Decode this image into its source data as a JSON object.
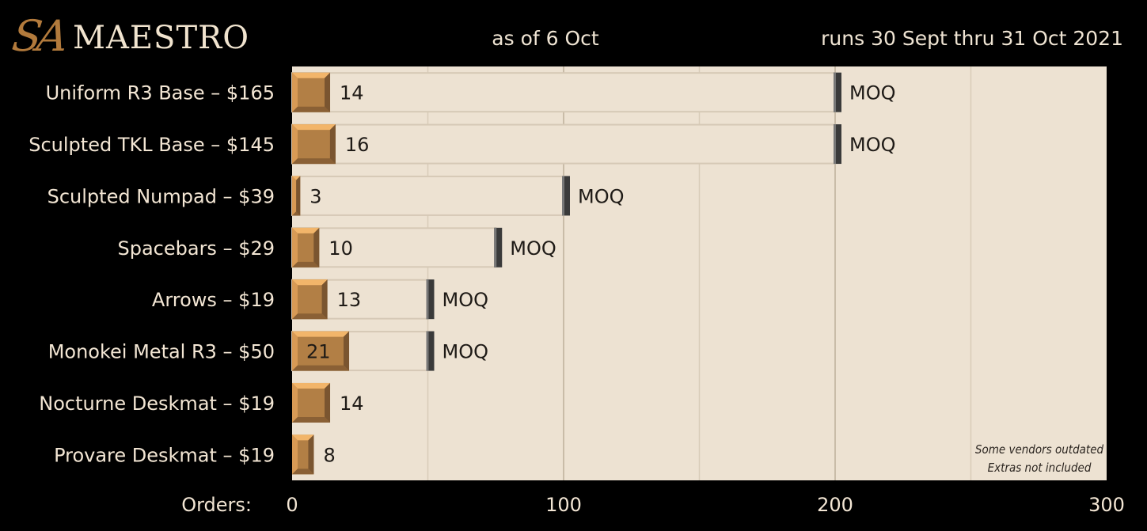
{
  "header": {
    "logo_mark": "SA",
    "logo_text": "MAESTRO",
    "date": "as of 6 Oct",
    "runs": "runs 30 Sept thru 31 Oct 2021"
  },
  "colors": {
    "plot_bg": "#ede2d2",
    "moq_track_border": "#d6c9b6",
    "bar_fill": "#b27f45",
    "bar_bevel_light": "#f2b56a",
    "bar_bevel_dark": "#7a5530",
    "moq_marker": "#3a3a3a",
    "grid": "#d8ccb8",
    "grid_major": "#c9bca8"
  },
  "chart_data": {
    "type": "bar",
    "orientation": "horizontal",
    "categories": [
      "Uniform R3 Base – $165",
      "Sculpted TKL Base – $145",
      "Sculpted Numpad – $39",
      "Spacebars – $29",
      "Arrows – $19",
      "Monokei Metal R3 – $50",
      "Nocturne Deskmat – $19",
      "Provare Deskmat – $19"
    ],
    "values": [
      14,
      16,
      3,
      10,
      13,
      21,
      14,
      8
    ],
    "moq": [
      200,
      200,
      100,
      75,
      50,
      50,
      null,
      null
    ],
    "moq_label": "MOQ",
    "xlabel": "Orders:",
    "xlim": [
      0,
      300
    ],
    "xticks": [
      0,
      100,
      200,
      300
    ],
    "grid": true,
    "notes": [
      "Some vendors outdated",
      "Extras not included"
    ]
  }
}
